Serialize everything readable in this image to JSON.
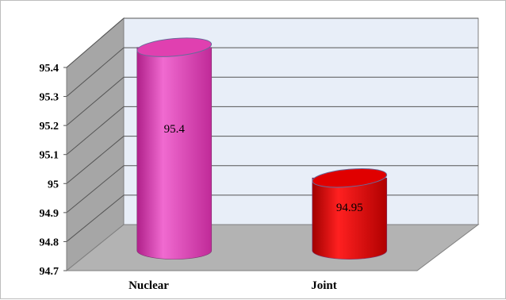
{
  "chart_data": {
    "type": "bar",
    "style": "3d-cylinder",
    "categories": [
      "Nuclear",
      "Joint"
    ],
    "values": [
      95.4,
      94.95
    ],
    "data_labels": [
      "95.4",
      "94.95"
    ],
    "ylim": [
      94.7,
      95.4
    ],
    "yticks": [
      "94.7",
      "94.8",
      "94.9",
      "95",
      "95.1",
      "95.2",
      "95.3",
      "95.4"
    ],
    "grid": true,
    "legend": "none",
    "colors": {
      "Nuclear": "#e040b0",
      "Joint": "#e00000",
      "back_wall": "#e8eef8",
      "side_wall": "#a6a6a6",
      "floor": "#b3b3b3"
    }
  }
}
